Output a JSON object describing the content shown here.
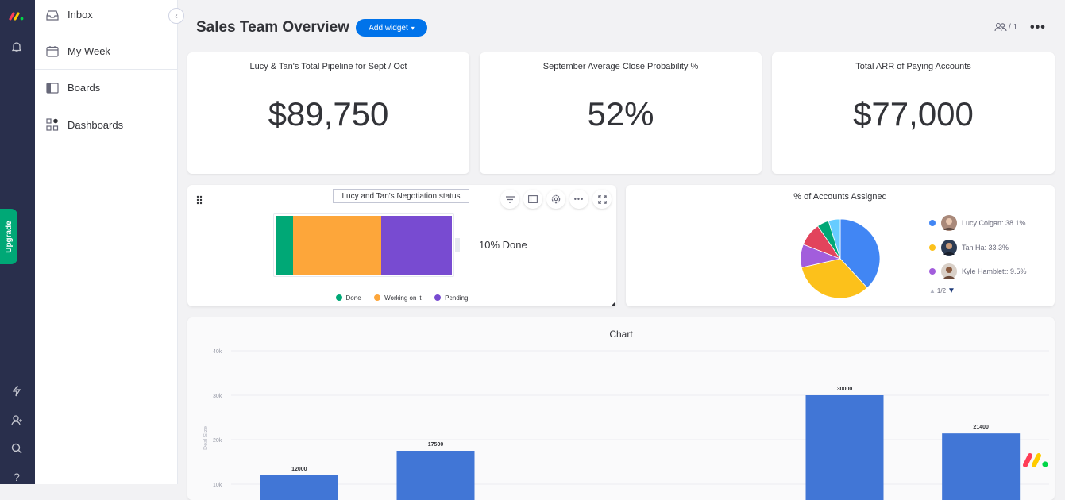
{
  "nav": {
    "items": [
      {
        "label": "Inbox"
      },
      {
        "label": "My Week"
      },
      {
        "label": "Boards"
      },
      {
        "label": "Dashboards"
      }
    ]
  },
  "rail": {
    "upgrade_label": "Upgrade"
  },
  "header": {
    "title": "Sales Team Overview",
    "add_widget_label": "Add widget",
    "members_count": "/ 1"
  },
  "kpis": [
    {
      "title": "Lucy & Tan's Total Pipeline for Sept / Oct",
      "value": "$89,750"
    },
    {
      "title": "September Average Close Probability %",
      "value": "52%"
    },
    {
      "title": "Total ARR of Paying Accounts",
      "value": "$77,000"
    }
  ],
  "negotiation": {
    "title": "Lucy and Tan's Negotiation status",
    "summary": "10% Done",
    "segments": [
      {
        "name": "Done",
        "fraction": 0.1,
        "color": "#00a876"
      },
      {
        "name": "Working on it",
        "fraction": 0.5,
        "color": "#fda63a"
      },
      {
        "name": "Pending",
        "fraction": 0.4,
        "color": "#784bd1"
      }
    ]
  },
  "accounts": {
    "title": "% of Accounts Assigned",
    "legend": [
      {
        "label": "Lucy Colgan: 38.1%",
        "color": "#4186f4"
      },
      {
        "label": "Tan Ha: 33.3%",
        "color": "#fcc11b"
      },
      {
        "label": "Kyle Hamblett: 9.5%",
        "color": "#a25ddc"
      }
    ],
    "pager": "1/2"
  },
  "chart_data": [
    {
      "type": "pie",
      "title": "% of Accounts Assigned",
      "slices": [
        {
          "label": "Lucy Colgan",
          "value": 38.1,
          "color": "#4186f4"
        },
        {
          "label": "Tan Ha",
          "value": 33.3,
          "color": "#fcc11b"
        },
        {
          "label": "Kyle Hamblett",
          "value": 9.5,
          "color": "#a25ddc"
        },
        {
          "label": "",
          "value": 9.5,
          "color": "#e2445c"
        },
        {
          "label": "",
          "value": 4.8,
          "color": "#00a876"
        },
        {
          "label": "",
          "value": 4.8,
          "color": "#66ccff"
        }
      ]
    },
    {
      "type": "bar",
      "title": "Chart",
      "ylabel": "Deal Size",
      "ylim": [
        0,
        40000
      ],
      "yticks": [
        "40k",
        "30k",
        "20k",
        "10k"
      ],
      "bar_color": "#4176d6",
      "values": [
        12000,
        17500,
        null,
        null,
        30000,
        21400
      ],
      "labels": [
        "12000",
        "17500",
        "",
        "",
        "30000",
        "21400"
      ]
    }
  ]
}
